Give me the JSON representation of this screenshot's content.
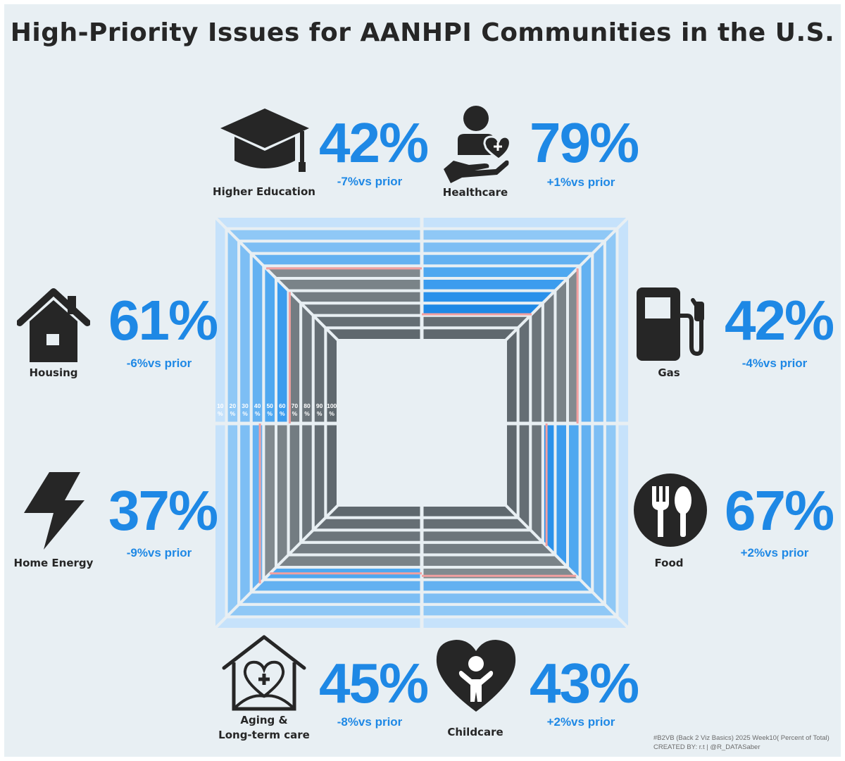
{
  "title": "High-Priority Issues for AANHPI Communities in the U.S.",
  "chart_data": {
    "type": "radial-square-bar",
    "title": "High-Priority Issues for AANHPI Communities in the U.S.",
    "scale_labels": [
      "10 %",
      "20 %",
      "30 %",
      "40 %",
      "50 %",
      "60 %",
      "70 %",
      "80 %",
      "90 %",
      "100 %"
    ],
    "categories": [
      "Higher Education",
      "Healthcare",
      "Gas",
      "Food",
      "Childcare",
      "Aging & Long-term care",
      "Home Energy",
      "Housing"
    ],
    "values": [
      42,
      79,
      42,
      67,
      43,
      45,
      37,
      61
    ],
    "change_vs_prior": [
      -7,
      1,
      -4,
      2,
      2,
      -8,
      -9,
      -6
    ],
    "colors": {
      "accent": "#1e88e5",
      "outer_ring": "#c6e2fb",
      "filled": [
        "#4fa8f0",
        "#1e88e5",
        "#0b7ae0"
      ],
      "unfilled": "#8a9499",
      "marker": "#f2a0a0",
      "background": "#e8eff3"
    }
  },
  "issues": {
    "higher_education": {
      "label": "Higher Education",
      "value": "42%",
      "change": "-7%vs prior",
      "icon": "graduation-cap-icon"
    },
    "healthcare": {
      "label": "Healthcare",
      "value": "79%",
      "change": "+1%vs prior",
      "icon": "person-heart-hand-icon"
    },
    "housing": {
      "label": "Housing",
      "value": "61%",
      "change": "-6%vs prior",
      "icon": "house-icon"
    },
    "gas": {
      "label": "Gas",
      "value": "42%",
      "change": "-4%vs prior",
      "icon": "gas-pump-icon"
    },
    "home_energy": {
      "label": "Home Energy",
      "value": "37%",
      "change": "-9%vs prior",
      "icon": "lightning-bolt-icon"
    },
    "food": {
      "label": "Food",
      "value": "67%",
      "change": "+2%vs prior",
      "icon": "fork-spoon-icon"
    },
    "aging": {
      "label_line1": "Aging &",
      "label_line2": "Long-term care",
      "value": "45%",
      "change": "-8%vs prior",
      "icon": "heart-house-icon"
    },
    "childcare": {
      "label": "Childcare",
      "value": "43%",
      "change": "+2%vs prior",
      "icon": "heart-child-icon"
    }
  },
  "credit": {
    "line1": "#B2VB (Back 2 Viz Basics)  2025 Week10( Percent of Total)",
    "line2": "CREATED BY: r.t | @R_DATASaber"
  }
}
